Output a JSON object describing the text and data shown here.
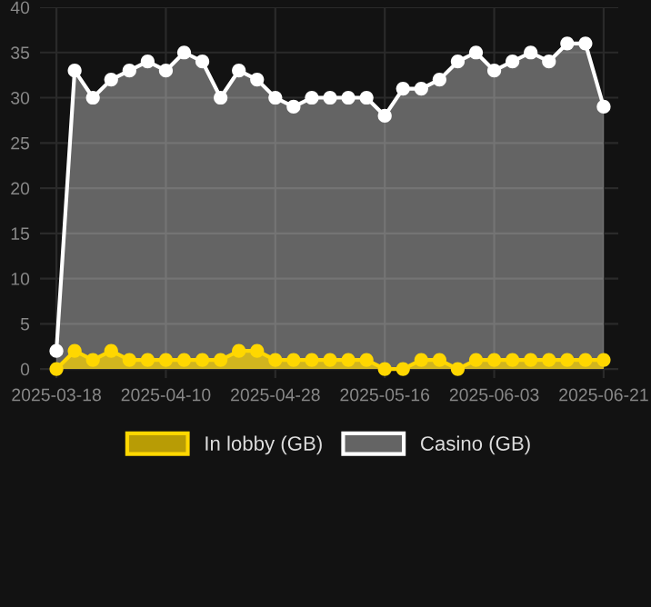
{
  "chart_data": {
    "type": "area",
    "categories": [
      "2025-03-18",
      null,
      null,
      null,
      null,
      null,
      "2025-04-10",
      null,
      null,
      null,
      null,
      null,
      "2025-04-28",
      null,
      null,
      null,
      null,
      null,
      "2025-05-16",
      null,
      null,
      null,
      null,
      null,
      "2025-06-03",
      null,
      null,
      null,
      null,
      null,
      "2025-06-21"
    ],
    "series": [
      {
        "name": "In lobby (GB)",
        "color": "#ffd700",
        "values": [
          0,
          2,
          1,
          2,
          1,
          1,
          1,
          1,
          1,
          1,
          2,
          2,
          1,
          1,
          1,
          1,
          1,
          1,
          0,
          0,
          1,
          1,
          0,
          1,
          1,
          1,
          1,
          1,
          1,
          1,
          1
        ]
      },
      {
        "name": "Casino (GB)",
        "color": "#ffffff",
        "values": [
          2,
          33,
          30,
          32,
          33,
          34,
          33,
          35,
          34,
          30,
          33,
          32,
          30,
          29,
          30,
          30,
          30,
          30,
          28,
          31,
          31,
          32,
          34,
          35,
          33,
          34,
          35,
          34,
          36,
          36,
          29
        ]
      }
    ],
    "ylim": [
      -1,
      40
    ],
    "yticks": [
      0,
      5,
      10,
      15,
      20,
      25,
      30,
      35,
      40
    ],
    "grid": true,
    "legend": "bottom",
    "marker": "circle",
    "line_style": "solid"
  }
}
